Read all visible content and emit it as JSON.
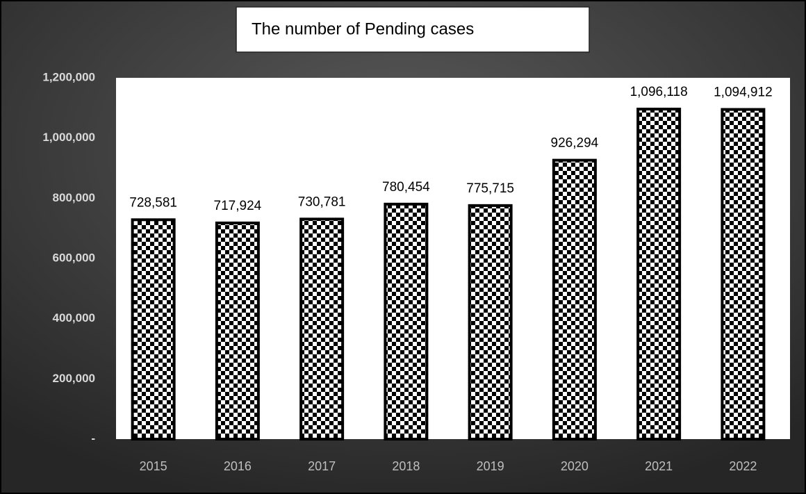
{
  "chart_data": {
    "type": "bar",
    "title": "The number of Pending cases",
    "categories": [
      "2015",
      "2016",
      "2017",
      "2018",
      "2019",
      "2020",
      "2021",
      "2022"
    ],
    "values": [
      728581,
      717924,
      730781,
      780454,
      775715,
      926294,
      1096118,
      1094912
    ],
    "value_labels": [
      "728,581",
      "717,924",
      "730,781",
      "780,454",
      "775,715",
      "926,294",
      "1,096,118",
      "1,094,912"
    ],
    "color": "#000000",
    "ylim": [
      0,
      1200000
    ],
    "yticks": [
      {
        "value": 0,
        "label": "-"
      },
      {
        "value": 200000,
        "label": "200,000"
      },
      {
        "value": 400000,
        "label": "400,000"
      },
      {
        "value": 600000,
        "label": "600,000"
      },
      {
        "value": 800000,
        "label": "800,000"
      },
      {
        "value": 1000000,
        "label": "1,000,000"
      },
      {
        "value": 1200000,
        "label": "1,200,000"
      }
    ]
  }
}
